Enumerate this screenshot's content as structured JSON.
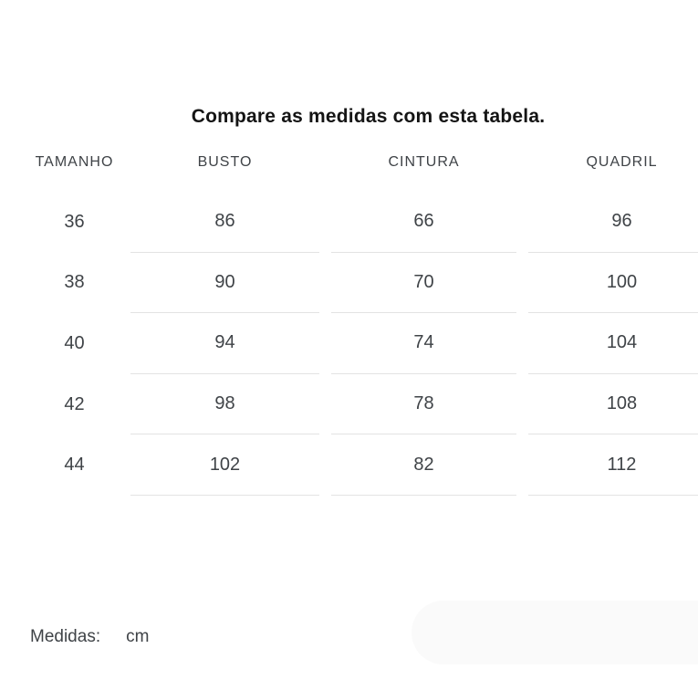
{
  "title": "Compare as medidas com esta tabela.",
  "table": {
    "headers": [
      "TAMANHO",
      "BUSTO",
      "CINTURA",
      "QUADRIL"
    ],
    "rows": [
      [
        "36",
        "86",
        "66",
        "96"
      ],
      [
        "38",
        "90",
        "70",
        "100"
      ],
      [
        "40",
        "94",
        "74",
        "104"
      ],
      [
        "42",
        "98",
        "78",
        "108"
      ],
      [
        "44",
        "102",
        "82",
        "112"
      ]
    ]
  },
  "footer": {
    "label": "Medidas:",
    "unit": "cm"
  },
  "colors": {
    "background": "#ffffff",
    "title_color": "#141414",
    "text_color": "#3f4347",
    "divider_color": "#e3e3e3",
    "pill_background": "#fafafa"
  }
}
